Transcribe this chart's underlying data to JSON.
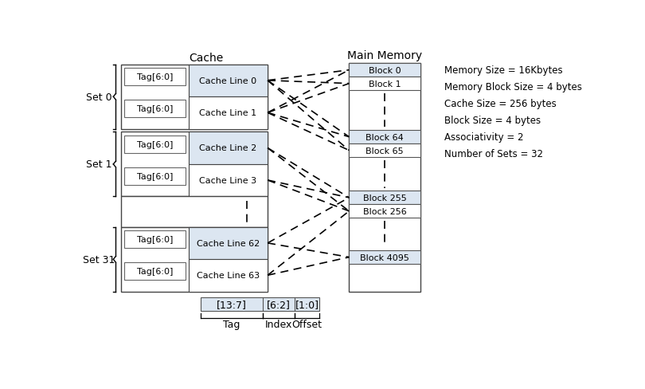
{
  "title_cache": "Cache",
  "title_memory": "Main Memory",
  "info_text": "Memory Size = 16Kbytes\nMemory Block Size = 4 bytes\nCache Size = 256 bytes\nBlock Size = 4 bytes\nAssociativity = 2\nNumber of Sets = 32",
  "cache_lines": [
    "Cache Line 0",
    "Cache Line 1",
    "Cache Line 2",
    "Cache Line 3",
    "Cache Line 62",
    "Cache Line 63"
  ],
  "tag_label": "Tag[6:0]",
  "addr_fields": [
    "[13:7]",
    "[6:2]",
    "[1:0]"
  ],
  "addr_labels": [
    "Tag",
    "Index",
    "Offset"
  ],
  "background_color": "#ffffff",
  "light_blue": "#dce6f1",
  "box_edge_color": "#555555"
}
